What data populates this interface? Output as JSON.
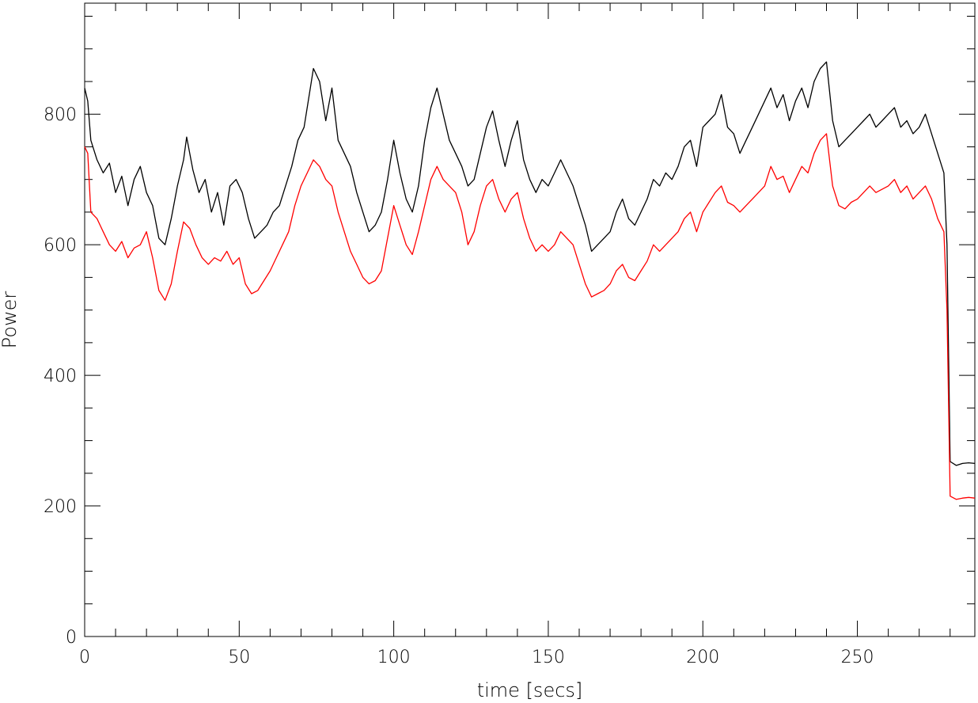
{
  "chart_data": {
    "type": "line",
    "title": "",
    "xlabel": "time [secs]",
    "ylabel": "Power",
    "xlim": [
      0,
      288
    ],
    "ylim": [
      0,
      970
    ],
    "x_ticks": [
      0,
      50,
      100,
      150,
      200,
      250
    ],
    "x_ticks_labels": [
      "0",
      "50",
      "100",
      "150",
      "200",
      "250"
    ],
    "y_ticks": [
      0,
      200,
      400,
      600,
      800
    ],
    "y_ticks_labels": [
      "0",
      "200",
      "400",
      "600",
      "800"
    ],
    "x_minor_step": 10,
    "y_minor_step": 50,
    "grid": false,
    "legend": "none",
    "series": [
      {
        "color": "#000000",
        "points": [
          [
            0,
            840
          ],
          [
            1,
            820
          ],
          [
            2,
            760
          ],
          [
            4,
            730
          ],
          [
            6,
            710
          ],
          [
            8,
            725
          ],
          [
            10,
            680
          ],
          [
            12,
            705
          ],
          [
            14,
            660
          ],
          [
            16,
            700
          ],
          [
            18,
            720
          ],
          [
            20,
            680
          ],
          [
            22,
            660
          ],
          [
            24,
            610
          ],
          [
            26,
            600
          ],
          [
            28,
            640
          ],
          [
            30,
            690
          ],
          [
            32,
            730
          ],
          [
            33,
            765
          ],
          [
            35,
            715
          ],
          [
            37,
            680
          ],
          [
            39,
            700
          ],
          [
            41,
            650
          ],
          [
            43,
            680
          ],
          [
            45,
            630
          ],
          [
            47,
            690
          ],
          [
            49,
            700
          ],
          [
            51,
            680
          ],
          [
            53,
            640
          ],
          [
            55,
            610
          ],
          [
            57,
            620
          ],
          [
            59,
            630
          ],
          [
            61,
            650
          ],
          [
            63,
            660
          ],
          [
            65,
            690
          ],
          [
            67,
            720
          ],
          [
            69,
            760
          ],
          [
            71,
            780
          ],
          [
            73,
            840
          ],
          [
            74,
            870
          ],
          [
            76,
            850
          ],
          [
            78,
            790
          ],
          [
            80,
            840
          ],
          [
            82,
            760
          ],
          [
            84,
            740
          ],
          [
            86,
            720
          ],
          [
            88,
            680
          ],
          [
            90,
            650
          ],
          [
            92,
            620
          ],
          [
            94,
            630
          ],
          [
            96,
            650
          ],
          [
            98,
            700
          ],
          [
            100,
            760
          ],
          [
            102,
            710
          ],
          [
            104,
            670
          ],
          [
            106,
            650
          ],
          [
            108,
            690
          ],
          [
            110,
            760
          ],
          [
            112,
            810
          ],
          [
            114,
            840
          ],
          [
            116,
            800
          ],
          [
            118,
            760
          ],
          [
            120,
            740
          ],
          [
            122,
            720
          ],
          [
            124,
            690
          ],
          [
            126,
            700
          ],
          [
            128,
            740
          ],
          [
            130,
            780
          ],
          [
            132,
            805
          ],
          [
            134,
            760
          ],
          [
            136,
            720
          ],
          [
            138,
            760
          ],
          [
            140,
            790
          ],
          [
            142,
            730
          ],
          [
            144,
            700
          ],
          [
            146,
            680
          ],
          [
            148,
            700
          ],
          [
            150,
            690
          ],
          [
            152,
            710
          ],
          [
            154,
            730
          ],
          [
            156,
            710
          ],
          [
            158,
            690
          ],
          [
            160,
            660
          ],
          [
            162,
            630
          ],
          [
            164,
            590
          ],
          [
            166,
            600
          ],
          [
            168,
            610
          ],
          [
            170,
            620
          ],
          [
            172,
            650
          ],
          [
            174,
            670
          ],
          [
            176,
            640
          ],
          [
            178,
            630
          ],
          [
            180,
            650
          ],
          [
            182,
            670
          ],
          [
            184,
            700
          ],
          [
            186,
            690
          ],
          [
            188,
            710
          ],
          [
            190,
            700
          ],
          [
            192,
            720
          ],
          [
            194,
            750
          ],
          [
            196,
            760
          ],
          [
            198,
            720
          ],
          [
            200,
            780
          ],
          [
            202,
            790
          ],
          [
            204,
            800
          ],
          [
            206,
            830
          ],
          [
            208,
            780
          ],
          [
            210,
            770
          ],
          [
            212,
            740
          ],
          [
            214,
            760
          ],
          [
            216,
            780
          ],
          [
            218,
            800
          ],
          [
            220,
            820
          ],
          [
            222,
            840
          ],
          [
            224,
            810
          ],
          [
            226,
            830
          ],
          [
            228,
            790
          ],
          [
            230,
            820
          ],
          [
            232,
            840
          ],
          [
            234,
            810
          ],
          [
            236,
            850
          ],
          [
            238,
            870
          ],
          [
            240,
            880
          ],
          [
            242,
            790
          ],
          [
            244,
            750
          ],
          [
            246,
            760
          ],
          [
            248,
            770
          ],
          [
            250,
            780
          ],
          [
            252,
            790
          ],
          [
            254,
            800
          ],
          [
            256,
            780
          ],
          [
            258,
            790
          ],
          [
            260,
            800
          ],
          [
            262,
            810
          ],
          [
            264,
            780
          ],
          [
            266,
            790
          ],
          [
            268,
            770
          ],
          [
            270,
            780
          ],
          [
            272,
            800
          ],
          [
            274,
            770
          ],
          [
            276,
            740
          ],
          [
            278,
            710
          ],
          [
            279,
            600
          ],
          [
            280,
            268
          ],
          [
            282,
            262
          ],
          [
            284,
            265
          ],
          [
            286,
            266
          ],
          [
            288,
            265
          ]
        ]
      },
      {
        "color": "#ff0000",
        "points": [
          [
            0,
            750
          ],
          [
            1,
            740
          ],
          [
            2,
            650
          ],
          [
            4,
            640
          ],
          [
            6,
            620
          ],
          [
            8,
            600
          ],
          [
            10,
            590
          ],
          [
            12,
            605
          ],
          [
            14,
            580
          ],
          [
            16,
            595
          ],
          [
            18,
            600
          ],
          [
            20,
            620
          ],
          [
            22,
            580
          ],
          [
            24,
            530
          ],
          [
            26,
            515
          ],
          [
            28,
            540
          ],
          [
            30,
            590
          ],
          [
            32,
            635
          ],
          [
            34,
            625
          ],
          [
            36,
            600
          ],
          [
            38,
            580
          ],
          [
            40,
            570
          ],
          [
            42,
            580
          ],
          [
            44,
            575
          ],
          [
            46,
            590
          ],
          [
            48,
            570
          ],
          [
            50,
            580
          ],
          [
            52,
            540
          ],
          [
            54,
            525
          ],
          [
            56,
            530
          ],
          [
            58,
            545
          ],
          [
            60,
            560
          ],
          [
            62,
            580
          ],
          [
            64,
            600
          ],
          [
            66,
            620
          ],
          [
            68,
            660
          ],
          [
            70,
            690
          ],
          [
            72,
            710
          ],
          [
            74,
            730
          ],
          [
            76,
            720
          ],
          [
            78,
            700
          ],
          [
            80,
            690
          ],
          [
            82,
            650
          ],
          [
            84,
            620
          ],
          [
            86,
            590
          ],
          [
            88,
            570
          ],
          [
            90,
            550
          ],
          [
            92,
            540
          ],
          [
            94,
            545
          ],
          [
            96,
            560
          ],
          [
            98,
            610
          ],
          [
            100,
            660
          ],
          [
            102,
            630
          ],
          [
            104,
            600
          ],
          [
            106,
            585
          ],
          [
            108,
            620
          ],
          [
            110,
            660
          ],
          [
            112,
            700
          ],
          [
            114,
            720
          ],
          [
            116,
            700
          ],
          [
            118,
            690
          ],
          [
            120,
            680
          ],
          [
            122,
            650
          ],
          [
            124,
            600
          ],
          [
            126,
            620
          ],
          [
            128,
            660
          ],
          [
            130,
            690
          ],
          [
            132,
            700
          ],
          [
            134,
            670
          ],
          [
            136,
            650
          ],
          [
            138,
            670
          ],
          [
            140,
            680
          ],
          [
            142,
            640
          ],
          [
            144,
            610
          ],
          [
            146,
            590
          ],
          [
            148,
            600
          ],
          [
            150,
            590
          ],
          [
            152,
            600
          ],
          [
            154,
            620
          ],
          [
            156,
            610
          ],
          [
            158,
            600
          ],
          [
            160,
            570
          ],
          [
            162,
            540
          ],
          [
            164,
            520
          ],
          [
            166,
            525
          ],
          [
            168,
            530
          ],
          [
            170,
            540
          ],
          [
            172,
            560
          ],
          [
            174,
            570
          ],
          [
            176,
            550
          ],
          [
            178,
            545
          ],
          [
            180,
            560
          ],
          [
            182,
            575
          ],
          [
            184,
            600
          ],
          [
            186,
            590
          ],
          [
            188,
            600
          ],
          [
            190,
            610
          ],
          [
            192,
            620
          ],
          [
            194,
            640
          ],
          [
            196,
            650
          ],
          [
            198,
            620
          ],
          [
            200,
            650
          ],
          [
            202,
            665
          ],
          [
            204,
            680
          ],
          [
            206,
            690
          ],
          [
            208,
            665
          ],
          [
            210,
            660
          ],
          [
            212,
            650
          ],
          [
            214,
            660
          ],
          [
            216,
            670
          ],
          [
            218,
            680
          ],
          [
            220,
            690
          ],
          [
            222,
            720
          ],
          [
            224,
            700
          ],
          [
            226,
            705
          ],
          [
            228,
            680
          ],
          [
            230,
            700
          ],
          [
            232,
            720
          ],
          [
            234,
            710
          ],
          [
            236,
            740
          ],
          [
            238,
            760
          ],
          [
            240,
            770
          ],
          [
            242,
            690
          ],
          [
            244,
            660
          ],
          [
            246,
            655
          ],
          [
            248,
            665
          ],
          [
            250,
            670
          ],
          [
            252,
            680
          ],
          [
            254,
            690
          ],
          [
            256,
            680
          ],
          [
            258,
            685
          ],
          [
            260,
            690
          ],
          [
            262,
            700
          ],
          [
            264,
            680
          ],
          [
            266,
            690
          ],
          [
            268,
            670
          ],
          [
            270,
            680
          ],
          [
            272,
            690
          ],
          [
            274,
            670
          ],
          [
            276,
            640
          ],
          [
            278,
            620
          ],
          [
            279,
            500
          ],
          [
            280,
            215
          ],
          [
            282,
            210
          ],
          [
            284,
            212
          ],
          [
            286,
            213
          ],
          [
            288,
            212
          ]
        ]
      }
    ]
  }
}
